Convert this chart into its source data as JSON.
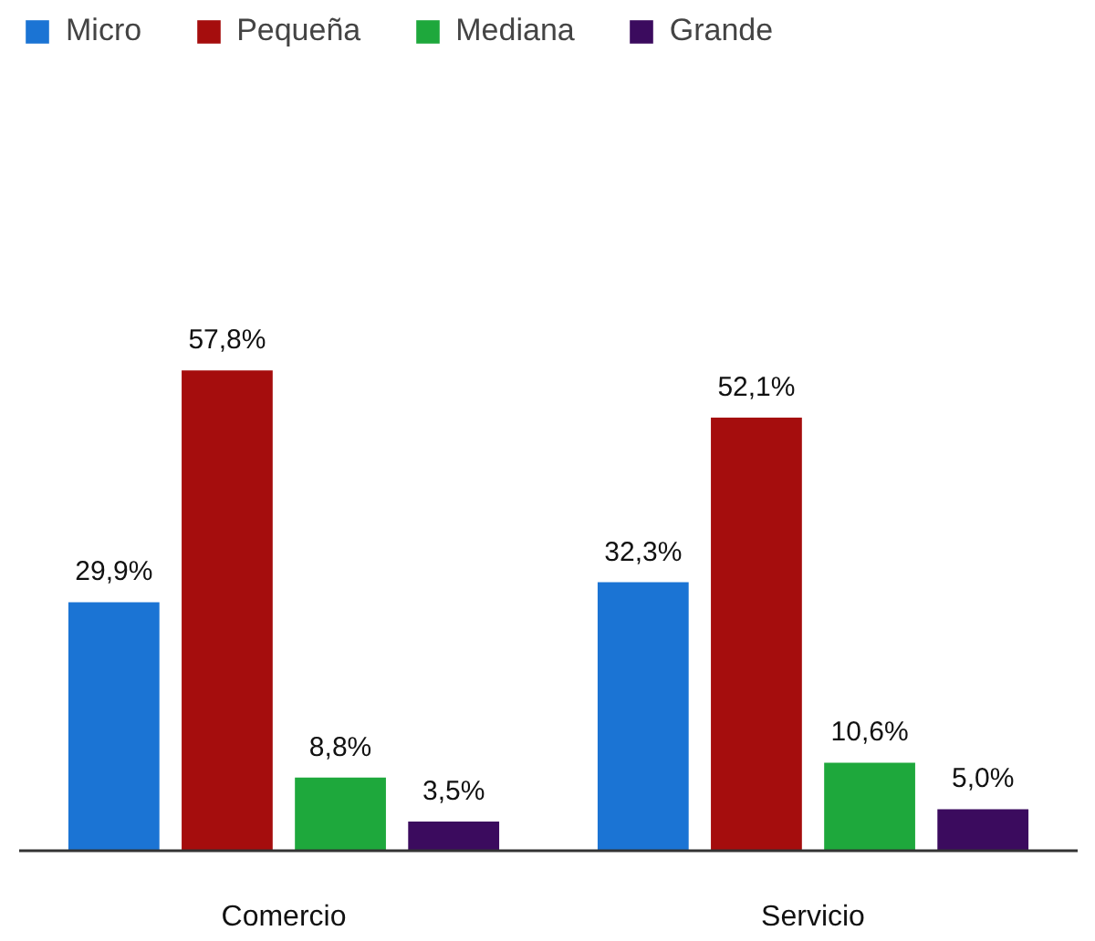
{
  "chart_data": {
    "type": "bar",
    "categories": [
      "Comercio",
      "Servicio"
    ],
    "series": [
      {
        "name": "Micro",
        "color": "#1b74d4",
        "values": [
          29.9,
          32.3
        ],
        "value_labels": [
          "29,9%",
          "32,3%"
        ]
      },
      {
        "name": "Pequeña",
        "color": "#a50d0d",
        "values": [
          57.8,
          52.1
        ],
        "value_labels": [
          "57,8%",
          "52,1%"
        ]
      },
      {
        "name": "Mediana",
        "color": "#1ea83c",
        "values": [
          8.8,
          10.6
        ],
        "value_labels": [
          "8,8%",
          "10,6%"
        ]
      },
      {
        "name": "Grande",
        "color": "#3b0b5e",
        "values": [
          3.5,
          5.0
        ],
        "value_labels": [
          "3,5%",
          "5,0%"
        ]
      }
    ],
    "legend": "top left"
  }
}
